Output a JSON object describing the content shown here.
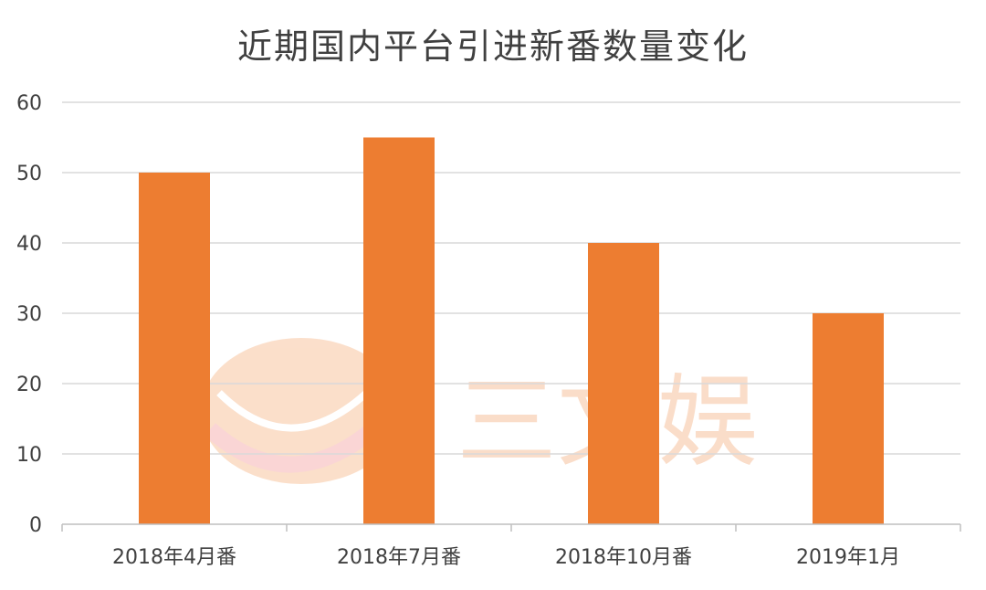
{
  "chart_data": {
    "type": "bar",
    "title": "近期国内平台引进新番数量变化",
    "categories": [
      "2018年4月番",
      "2018年7月番",
      "2018年10月番",
      "2019年1月"
    ],
    "values": [
      50,
      55,
      40,
      30
    ],
    "ylim": [
      0,
      60
    ],
    "yticks": [
      0,
      10,
      20,
      30,
      40,
      50,
      60
    ],
    "grid": true,
    "bar_color": "#ED7D31",
    "grid_color": "#D9D9D9",
    "xlabel": "",
    "ylabel": ""
  },
  "watermark": {
    "text": "三文娱",
    "color": "#F5B48A"
  }
}
